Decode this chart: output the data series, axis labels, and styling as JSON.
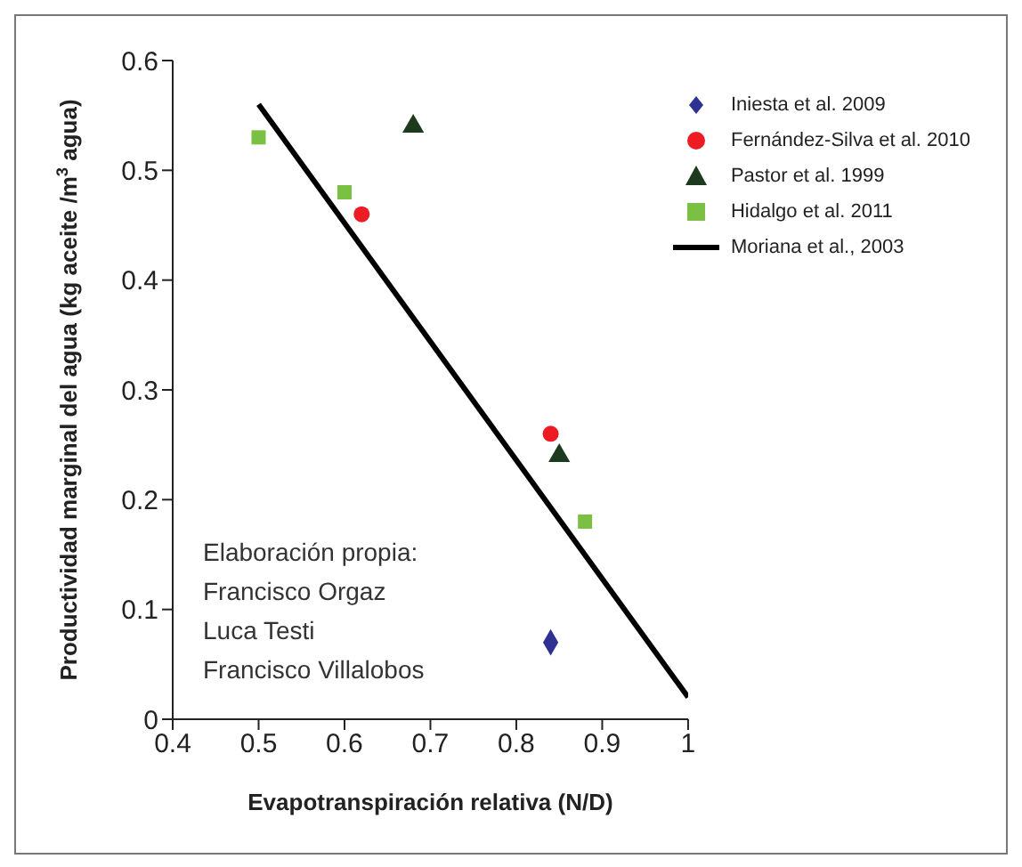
{
  "chart_data": {
    "type": "scatter",
    "xlabel": "Evapotranspiración relativa (N/D)",
    "ylabel": "Productividad marginal del agua (kg aceite /m$^{3}$ agua)",
    "xlim": [
      0.4,
      1
    ],
    "xticks": [
      0.4,
      0.5,
      0.6,
      0.7,
      0.8,
      0.9,
      1
    ],
    "ylim": [
      0,
      0.6
    ],
    "yticks": [
      0,
      0.1,
      0.2,
      0.3,
      0.4,
      0.5,
      0.6
    ],
    "grid": false,
    "legend": "top right",
    "annotations": [
      "Elaboración propia:",
      "Francisco Orgaz",
      "Luca Testi",
      "Francisco Villalobos"
    ],
    "series": [
      {
        "name": "Iniesta et al. 2009",
        "marker": "diamond",
        "color": "#2e3192",
        "x": [
          0.84
        ],
        "values": [
          0.07
        ]
      },
      {
        "name": "Fernández-Silva et al. 2010",
        "marker": "circle",
        "color": "#ed1c24",
        "x": [
          0.62,
          0.84
        ],
        "values": [
          0.46,
          0.26
        ]
      },
      {
        "name": "Pastor et al. 1999",
        "marker": "triangle",
        "color": "#1e3a1e",
        "x": [
          0.68,
          0.85
        ],
        "values": [
          0.54,
          0.24
        ]
      },
      {
        "name": "Hidalgo et al. 2011",
        "marker": "square",
        "color": "#7ac143",
        "x": [
          0.5,
          0.6,
          0.88
        ],
        "values": [
          0.53,
          0.48,
          0.18
        ]
      },
      {
        "name": "Moriana et al., 2003",
        "type": "line",
        "marker": "none",
        "color": "#000000",
        "x": [
          0.5,
          1
        ],
        "values": [
          0.56,
          0.02
        ]
      }
    ]
  }
}
